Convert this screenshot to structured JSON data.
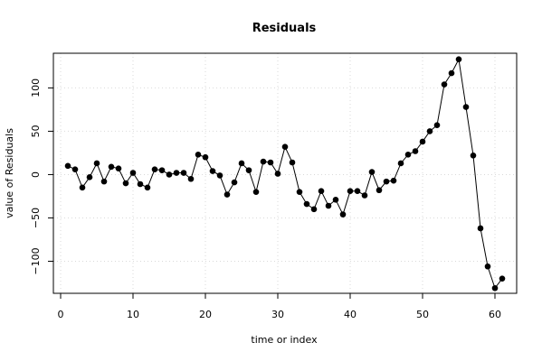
{
  "chart_data": {
    "type": "line",
    "title": "Residuals",
    "xlabel": "time or index",
    "ylabel": "value of Residuals",
    "xlim": [
      -1,
      63
    ],
    "ylim": [
      -137,
      140
    ],
    "x_ticks": [
      0,
      10,
      20,
      30,
      40,
      50,
      60
    ],
    "y_ticks": [
      -100,
      -50,
      0,
      50,
      100
    ],
    "grid": true,
    "legend": "none",
    "marker": "filled-circle",
    "colors": {
      "line": "#000000",
      "marker": "#000000",
      "grid": "#d9d9d9"
    },
    "series": [
      {
        "x": [
          1,
          2,
          3,
          4,
          5,
          6,
          7,
          8,
          9,
          10,
          11,
          12,
          13,
          14,
          15,
          16,
          17,
          18,
          19,
          20,
          21,
          22,
          23,
          24,
          25,
          26,
          27,
          28,
          29,
          30,
          31,
          32,
          33,
          34,
          35,
          36,
          37,
          38,
          39,
          40,
          41,
          42,
          43,
          44,
          45,
          46,
          47,
          48,
          49,
          50,
          51,
          52,
          53,
          54,
          55,
          56,
          57,
          58,
          59,
          60,
          61
        ],
        "y": [
          10,
          6,
          -15,
          -3,
          13,
          -8,
          9,
          7,
          -10,
          2,
          -11,
          -15,
          6,
          5,
          0,
          2,
          2,
          -5,
          23,
          20,
          4,
          -1,
          -23,
          -9,
          13,
          5,
          -20,
          15,
          14,
          1,
          32,
          14,
          -20,
          -34,
          -40,
          -19,
          -36,
          -29,
          -46,
          -19,
          -19,
          -24,
          3,
          -18,
          -8,
          -7,
          13,
          23,
          27,
          38,
          50,
          57,
          104,
          117,
          133,
          78,
          22,
          -62,
          -106,
          -131,
          -120
        ]
      }
    ]
  }
}
